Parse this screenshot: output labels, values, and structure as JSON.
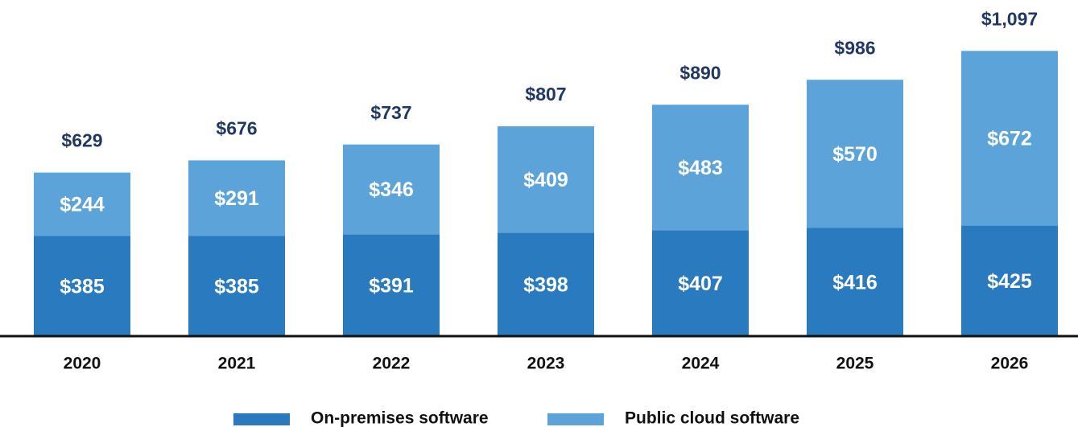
{
  "chart_data": {
    "type": "stacked_bar",
    "categories": [
      "2020",
      "2021",
      "2022",
      "2023",
      "2024",
      "2025",
      "2026"
    ],
    "series": [
      {
        "name": "On-premises software",
        "color": "#2a7abf",
        "values": [
          385,
          385,
          391,
          398,
          407,
          416,
          425
        ],
        "value_labels": [
          "$385",
          "$385",
          "$391",
          "$398",
          "$407",
          "$416",
          "$425"
        ]
      },
      {
        "name": "Public cloud software",
        "color": "#5ba3d9",
        "values": [
          244,
          291,
          346,
          409,
          483,
          570,
          672
        ],
        "value_labels": [
          "$244",
          "$291",
          "$346",
          "$409",
          "$483",
          "$570",
          "$672"
        ]
      }
    ],
    "totals": [
      629,
      676,
      737,
      807,
      890,
      986,
      1097
    ],
    "total_labels": [
      "$629",
      "$676",
      "$737",
      "$807",
      "$890",
      "$986",
      "$1,097"
    ],
    "total_color": "#1f3864",
    "ylim": [
      0,
      1200
    ]
  }
}
